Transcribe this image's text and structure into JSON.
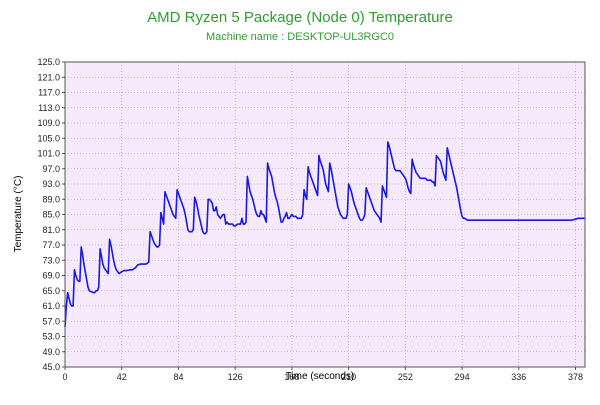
{
  "chart_data": {
    "type": "line",
    "title": "AMD Ryzen 5 Package (Node 0) Temperature",
    "subtitle": "Machine name : DESKTOP-UL3RGC0",
    "xlabel": "Time (seconds)",
    "ylabel": "Temperature (°C)",
    "xlim": [
      0,
      385
    ],
    "ylim": [
      45,
      125
    ],
    "x_ticks": [
      0,
      42,
      84,
      126,
      168,
      210,
      252,
      294,
      336,
      378
    ],
    "y_ticks": [
      45.0,
      49.0,
      53.0,
      57.0,
      61.0,
      65.0,
      69.0,
      73.0,
      77.0,
      81.0,
      85.0,
      89.0,
      93.0,
      97.0,
      101.0,
      105.0,
      109.0,
      113.0,
      117.0,
      121.0,
      125.0
    ],
    "grid": true,
    "colors": {
      "title": "#2e9e2e",
      "line": "#1a1adf",
      "plot_background": "#f5e9fb",
      "grid": "#9a9a9a"
    },
    "series": [
      {
        "values": [
          [
            0,
            55.5
          ],
          [
            1,
            61
          ],
          [
            2,
            64.5
          ],
          [
            3,
            63
          ],
          [
            4,
            61.5
          ],
          [
            5,
            61
          ],
          [
            6,
            61
          ],
          [
            7,
            70.5
          ],
          [
            8,
            69
          ],
          [
            9,
            68
          ],
          [
            10,
            67.5
          ],
          [
            11,
            67.5
          ],
          [
            12,
            76.5
          ],
          [
            13,
            74.5
          ],
          [
            14,
            72
          ],
          [
            15,
            70
          ],
          [
            16,
            68
          ],
          [
            17,
            66
          ],
          [
            18,
            65
          ],
          [
            19,
            64.8
          ],
          [
            20,
            64.7
          ],
          [
            21,
            64.5
          ],
          [
            22,
            64.5
          ],
          [
            23,
            65
          ],
          [
            24,
            65
          ],
          [
            25,
            66
          ],
          [
            26,
            76
          ],
          [
            27,
            74
          ],
          [
            28,
            72
          ],
          [
            29,
            71
          ],
          [
            30,
            70.5
          ],
          [
            31,
            70
          ],
          [
            32,
            69.5
          ],
          [
            33,
            78.5
          ],
          [
            34,
            77
          ],
          [
            35,
            75
          ],
          [
            36,
            73
          ],
          [
            37,
            71.5
          ],
          [
            38,
            70.5
          ],
          [
            39,
            70
          ],
          [
            40,
            69.5
          ],
          [
            42,
            70
          ],
          [
            44,
            70.3
          ],
          [
            46,
            70.3
          ],
          [
            48,
            70.5
          ],
          [
            50,
            70.5
          ],
          [
            52,
            71
          ],
          [
            54,
            71.8
          ],
          [
            56,
            72
          ],
          [
            58,
            72
          ],
          [
            60,
            72
          ],
          [
            62,
            72.5
          ],
          [
            63,
            80.5
          ],
          [
            64,
            79.5
          ],
          [
            65,
            78.5
          ],
          [
            66,
            77.5
          ],
          [
            67,
            77
          ],
          [
            68,
            76.5
          ],
          [
            69,
            76.5
          ],
          [
            70,
            77
          ],
          [
            71,
            85.5
          ],
          [
            72,
            84
          ],
          [
            73,
            82.5
          ],
          [
            74,
            91
          ],
          [
            75,
            90
          ],
          [
            76,
            89
          ],
          [
            77,
            88
          ],
          [
            78,
            87
          ],
          [
            79,
            86
          ],
          [
            80,
            85
          ],
          [
            81,
            84.5
          ],
          [
            82,
            84
          ],
          [
            83,
            91.5
          ],
          [
            84,
            90.5
          ],
          [
            85,
            89.5
          ],
          [
            86,
            88.5
          ],
          [
            87,
            87.5
          ],
          [
            88,
            86.5
          ],
          [
            89,
            85
          ],
          [
            90,
            83
          ],
          [
            91,
            81
          ],
          [
            92,
            80.5
          ],
          [
            93,
            80.5
          ],
          [
            94,
            80.5
          ],
          [
            95,
            81
          ],
          [
            96,
            89.5
          ],
          [
            97,
            88.5
          ],
          [
            98,
            87
          ],
          [
            99,
            85
          ],
          [
            100,
            83.5
          ],
          [
            101,
            82
          ],
          [
            102,
            80.5
          ],
          [
            103,
            80
          ],
          [
            104,
            80
          ],
          [
            105,
            80.5
          ],
          [
            106,
            89
          ],
          [
            107,
            89
          ],
          [
            108,
            88.5
          ],
          [
            109,
            88
          ],
          [
            110,
            86
          ],
          [
            111,
            86
          ],
          [
            112,
            87
          ],
          [
            113,
            85
          ],
          [
            114,
            84.5
          ],
          [
            115,
            84
          ],
          [
            116,
            84.5
          ],
          [
            117,
            85
          ],
          [
            118,
            85
          ],
          [
            119,
            82.5
          ],
          [
            120,
            83
          ],
          [
            121,
            82.5
          ],
          [
            122,
            82.5
          ],
          [
            123,
            82.5
          ],
          [
            124,
            82.5
          ],
          [
            125,
            82
          ],
          [
            126,
            82
          ],
          [
            128,
            82.5
          ],
          [
            130,
            82.5
          ],
          [
            131,
            84
          ],
          [
            132,
            82.5
          ],
          [
            133,
            82.5
          ],
          [
            134,
            83
          ],
          [
            135,
            95
          ],
          [
            136,
            93
          ],
          [
            137,
            91
          ],
          [
            138,
            90
          ],
          [
            139,
            89
          ],
          [
            140,
            87.5
          ],
          [
            141,
            86
          ],
          [
            142,
            85
          ],
          [
            143,
            84.5
          ],
          [
            144,
            84.5
          ],
          [
            145,
            86
          ],
          [
            146,
            85
          ],
          [
            147,
            85
          ],
          [
            148,
            84
          ],
          [
            149,
            83
          ],
          [
            150,
            98.5
          ],
          [
            151,
            97
          ],
          [
            152,
            96
          ],
          [
            153,
            95
          ],
          [
            154,
            93
          ],
          [
            155,
            91
          ],
          [
            156,
            89.5
          ],
          [
            157,
            88.5
          ],
          [
            158,
            87
          ],
          [
            159,
            85
          ],
          [
            160,
            83
          ],
          [
            161,
            83
          ],
          [
            162,
            84
          ],
          [
            163,
            84.5
          ],
          [
            164,
            85.5
          ],
          [
            165,
            84
          ],
          [
            166,
            84
          ],
          [
            167,
            84.5
          ],
          [
            168,
            85
          ],
          [
            169,
            84.5
          ],
          [
            170,
            84.5
          ],
          [
            171,
            84.5
          ],
          [
            172,
            84
          ],
          [
            173,
            84
          ],
          [
            174,
            84
          ],
          [
            175,
            84
          ],
          [
            176,
            85
          ],
          [
            177,
            91.5
          ],
          [
            178,
            90
          ],
          [
            179,
            89
          ],
          [
            180,
            97.5
          ],
          [
            181,
            96
          ],
          [
            182,
            95
          ],
          [
            183,
            94
          ],
          [
            184,
            93
          ],
          [
            185,
            92
          ],
          [
            186,
            91
          ],
          [
            187,
            90
          ],
          [
            188,
            100.5
          ],
          [
            189,
            99
          ],
          [
            190,
            98
          ],
          [
            191,
            97
          ],
          [
            192,
            95
          ],
          [
            193,
            93
          ],
          [
            194,
            92
          ],
          [
            195,
            91
          ],
          [
            196,
            98.5
          ],
          [
            197,
            97
          ],
          [
            198,
            95
          ],
          [
            199,
            93
          ],
          [
            200,
            91
          ],
          [
            201,
            89
          ],
          [
            202,
            87
          ],
          [
            203,
            86
          ],
          [
            204,
            85
          ],
          [
            205,
            84.5
          ],
          [
            206,
            84
          ],
          [
            207,
            84
          ],
          [
            208,
            84
          ],
          [
            209,
            85
          ],
          [
            210,
            93
          ],
          [
            211,
            92
          ],
          [
            212,
            91
          ],
          [
            213,
            89.5
          ],
          [
            214,
            88
          ],
          [
            215,
            87
          ],
          [
            216,
            86
          ],
          [
            217,
            85
          ],
          [
            218,
            84
          ],
          [
            219,
            83.5
          ],
          [
            220,
            83.5
          ],
          [
            221,
            84
          ],
          [
            222,
            85
          ],
          [
            223,
            92
          ],
          [
            224,
            91
          ],
          [
            225,
            90
          ],
          [
            226,
            89
          ],
          [
            227,
            88
          ],
          [
            228,
            87
          ],
          [
            229,
            86
          ],
          [
            230,
            85.5
          ],
          [
            231,
            85
          ],
          [
            232,
            84.5
          ],
          [
            233,
            84
          ],
          [
            234,
            83
          ],
          [
            235,
            92.5
          ],
          [
            236,
            91.5
          ],
          [
            237,
            90.5
          ],
          [
            238,
            89.5
          ],
          [
            239,
            104
          ],
          [
            240,
            103
          ],
          [
            241,
            101.5
          ],
          [
            242,
            100
          ],
          [
            243,
            98.5
          ],
          [
            244,
            97
          ],
          [
            245,
            96.5
          ],
          [
            246,
            96.5
          ],
          [
            247,
            96.5
          ],
          [
            248,
            96.5
          ],
          [
            249,
            96
          ],
          [
            250,
            95.5
          ],
          [
            251,
            95
          ],
          [
            252,
            94.5
          ],
          [
            253,
            93.5
          ],
          [
            254,
            92
          ],
          [
            255,
            91
          ],
          [
            256,
            90.5
          ],
          [
            257,
            99.5
          ],
          [
            258,
            98
          ],
          [
            259,
            97
          ],
          [
            260,
            96
          ],
          [
            261,
            95.5
          ],
          [
            262,
            95
          ],
          [
            263,
            94.5
          ],
          [
            264,
            94.5
          ],
          [
            265,
            94.5
          ],
          [
            266,
            94.5
          ],
          [
            267,
            94.5
          ],
          [
            268,
            94
          ],
          [
            269,
            94
          ],
          [
            270,
            94
          ],
          [
            271,
            94
          ],
          [
            272,
            93.5
          ],
          [
            273,
            93.5
          ],
          [
            274,
            92.5
          ],
          [
            275,
            100.5
          ],
          [
            276,
            100
          ],
          [
            277,
            99.5
          ],
          [
            278,
            99
          ],
          [
            279,
            97.5
          ],
          [
            280,
            96
          ],
          [
            281,
            95
          ],
          [
            282,
            94
          ],
          [
            283,
            102.5
          ],
          [
            284,
            101
          ],
          [
            285,
            99.5
          ],
          [
            286,
            98
          ],
          [
            287,
            96.5
          ],
          [
            288,
            95
          ],
          [
            289,
            93.5
          ],
          [
            290,
            92
          ],
          [
            291,
            90
          ],
          [
            292,
            88
          ],
          [
            293,
            86
          ],
          [
            294,
            84.5
          ],
          [
            295,
            84
          ],
          [
            296,
            84
          ],
          [
            298,
            83.5
          ],
          [
            300,
            83.5
          ],
          [
            305,
            83.5
          ],
          [
            310,
            83.5
          ],
          [
            315,
            83.5
          ],
          [
            320,
            83.5
          ],
          [
            325,
            83.5
          ],
          [
            330,
            83.5
          ],
          [
            335,
            83.5
          ],
          [
            340,
            83.5
          ],
          [
            345,
            83.5
          ],
          [
            350,
            83.5
          ],
          [
            355,
            83.5
          ],
          [
            360,
            83.5
          ],
          [
            365,
            83.5
          ],
          [
            370,
            83.5
          ],
          [
            375,
            83.5
          ],
          [
            380,
            84
          ],
          [
            385,
            84
          ]
        ]
      }
    ]
  }
}
